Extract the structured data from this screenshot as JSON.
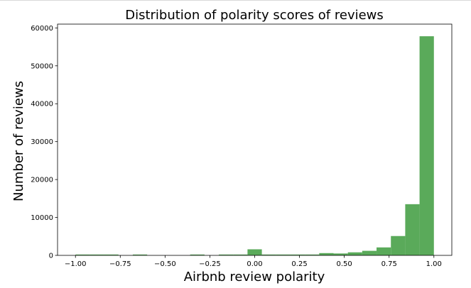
{
  "chart_data": {
    "type": "bar",
    "subtype": "histogram",
    "title": "Distribution of polarity scores of reviews",
    "xlabel": "Airbnb review polarity",
    "ylabel": "Number of reviews",
    "xlim": [
      -1.1,
      1.1
    ],
    "ylim": [
      0,
      61000
    ],
    "xticks": [
      -1.0,
      -0.75,
      -0.5,
      -0.25,
      0.0,
      0.25,
      0.5,
      0.75,
      1.0
    ],
    "xtick_labels": [
      "−1.00",
      "−0.75",
      "−0.50",
      "−0.25",
      "0.00",
      "0.25",
      "0.50",
      "0.75",
      "1.00"
    ],
    "yticks": [
      0,
      10000,
      20000,
      30000,
      40000,
      50000,
      60000
    ],
    "ytick_labels": [
      "0",
      "10000",
      "20000",
      "30000",
      "40000",
      "50000",
      "60000"
    ],
    "grid": false,
    "legend": false,
    "bin_width": 0.08,
    "bins": [
      {
        "x0": -1.0,
        "x1": -0.92,
        "count": 80
      },
      {
        "x0": -0.92,
        "x1": -0.84,
        "count": 60
      },
      {
        "x0": -0.84,
        "x1": -0.76,
        "count": 50
      },
      {
        "x0": -0.76,
        "x1": -0.68,
        "count": 0
      },
      {
        "x0": -0.68,
        "x1": -0.6,
        "count": 50
      },
      {
        "x0": -0.6,
        "x1": -0.52,
        "count": 0
      },
      {
        "x0": -0.52,
        "x1": -0.44,
        "count": 0
      },
      {
        "x0": -0.44,
        "x1": -0.36,
        "count": 0
      },
      {
        "x0": -0.36,
        "x1": -0.28,
        "count": 60
      },
      {
        "x0": -0.28,
        "x1": -0.2,
        "count": 0
      },
      {
        "x0": -0.2,
        "x1": -0.12,
        "count": 80
      },
      {
        "x0": -0.12,
        "x1": -0.04,
        "count": 120
      },
      {
        "x0": -0.04,
        "x1": 0.04,
        "count": 1600
      },
      {
        "x0": 0.04,
        "x1": 0.12,
        "count": 100
      },
      {
        "x0": 0.12,
        "x1": 0.2,
        "count": 80
      },
      {
        "x0": 0.2,
        "x1": 0.28,
        "count": 90
      },
      {
        "x0": 0.28,
        "x1": 0.36,
        "count": 110
      },
      {
        "x0": 0.36,
        "x1": 0.44,
        "count": 600
      },
      {
        "x0": 0.44,
        "x1": 0.52,
        "count": 500
      },
      {
        "x0": 0.52,
        "x1": 0.6,
        "count": 800
      },
      {
        "x0": 0.6,
        "x1": 0.68,
        "count": 1200
      },
      {
        "x0": 0.68,
        "x1": 0.76,
        "count": 2100
      },
      {
        "x0": 0.76,
        "x1": 0.84,
        "count": 5100
      },
      {
        "x0": 0.84,
        "x1": 0.92,
        "count": 13500
      },
      {
        "x0": 0.92,
        "x1": 1.0,
        "count": 57800
      }
    ],
    "bar_color": "#5aaa5a"
  }
}
